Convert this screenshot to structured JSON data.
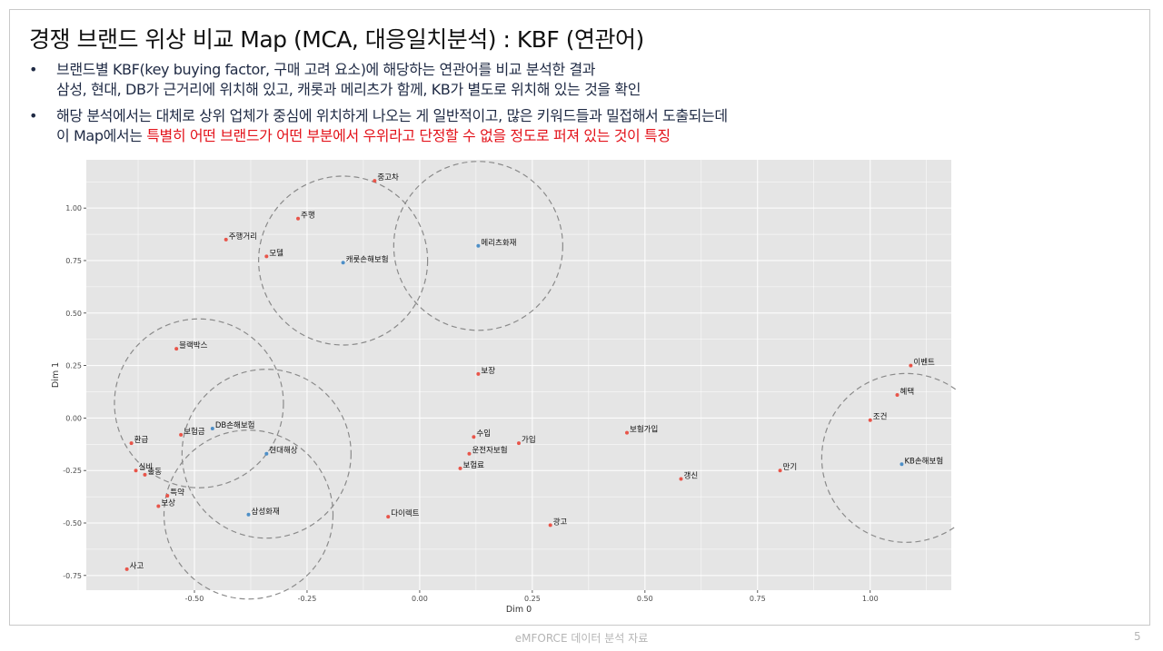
{
  "title": "경쟁 브랜드 위상 비교 Map (MCA, 대응일치분석) : KBF (연관어)",
  "bullets": [
    {
      "line1": "브랜드별 KBF(key buying factor, 구매 고려 요소)에 해당하는 연관어를 비교 분석한 결과",
      "line2": "삼성, 현대, DB가 근거리에 위치해 있고, 캐롯과 메리츠가 함께, KB가 별도로 위치해 있는 것을 확인"
    },
    {
      "line1": "해당 분석에서는 대체로 상위 업체가 중심에 위치하게 나오는 게 일반적이고, 많은 키워드들과 밀접해서 도출되는데",
      "line2_prefix": "이 Map에서는 ",
      "line2_highlight": "특별히 어떤 브랜드가 어떤 부분에서 우위라고 단정할 수 없을 정도로 퍼져 있는 것이 특징"
    }
  ],
  "bullet_marker": "•",
  "footer": "eMFORCE 데이터 분석 자료",
  "page_number": "5",
  "colors": {
    "keyword_point": "#e8554a",
    "brand_point": "#4e8fc7",
    "panel_bg": "#e5e5e5",
    "gridline": "#ffffff",
    "circle": "#8a8a8a",
    "highlight_text": "#e3131b"
  },
  "chart_data": {
    "type": "scatter",
    "xlabel": "Dim 0",
    "ylabel": "Dim 1",
    "xlim": [
      -0.74,
      1.18
    ],
    "ylim": [
      -0.82,
      1.23
    ],
    "xticks": [
      -0.5,
      -0.25,
      0.0,
      0.25,
      0.5,
      0.75,
      1.0
    ],
    "xtick_labels": [
      "-0.50",
      "-0.25",
      "0.00",
      "0.25",
      "0.50",
      "0.75",
      "1.00"
    ],
    "yticks": [
      -0.75,
      -0.5,
      -0.25,
      0.0,
      0.25,
      0.5,
      0.75,
      1.0
    ],
    "ytick_labels": [
      "-0.75",
      "-0.50",
      "-0.25",
      "0.00",
      "0.25",
      "0.50",
      "0.75",
      "1.00"
    ],
    "grid": true,
    "points": [
      {
        "label": "중고차",
        "x": -0.1,
        "y": 1.13,
        "kind": "keyword"
      },
      {
        "label": "주행",
        "x": -0.27,
        "y": 0.95,
        "kind": "keyword"
      },
      {
        "label": "주행거리",
        "x": -0.43,
        "y": 0.85,
        "kind": "keyword"
      },
      {
        "label": "모델",
        "x": -0.34,
        "y": 0.77,
        "kind": "keyword"
      },
      {
        "label": "캐롯손해보험",
        "x": -0.17,
        "y": 0.74,
        "kind": "brand"
      },
      {
        "label": "메리츠화재",
        "x": 0.13,
        "y": 0.82,
        "kind": "brand"
      },
      {
        "label": "블랙박스",
        "x": -0.54,
        "y": 0.33,
        "kind": "keyword"
      },
      {
        "label": "보장",
        "x": 0.13,
        "y": 0.21,
        "kind": "keyword"
      },
      {
        "label": "이벤트",
        "x": 1.09,
        "y": 0.25,
        "kind": "keyword"
      },
      {
        "label": "혜택",
        "x": 1.06,
        "y": 0.11,
        "kind": "keyword"
      },
      {
        "label": "조건",
        "x": 1.0,
        "y": -0.01,
        "kind": "keyword"
      },
      {
        "label": "DB손해보험",
        "x": -0.46,
        "y": -0.05,
        "kind": "brand"
      },
      {
        "label": "보험금",
        "x": -0.53,
        "y": -0.08,
        "kind": "keyword"
      },
      {
        "label": "환급",
        "x": -0.64,
        "y": -0.12,
        "kind": "keyword"
      },
      {
        "label": "현대해상",
        "x": -0.34,
        "y": -0.17,
        "kind": "brand"
      },
      {
        "label": "수입",
        "x": 0.12,
        "y": -0.09,
        "kind": "keyword"
      },
      {
        "label": "가입",
        "x": 0.22,
        "y": -0.12,
        "kind": "keyword"
      },
      {
        "label": "보험가입",
        "x": 0.46,
        "y": -0.07,
        "kind": "keyword"
      },
      {
        "label": "운전자보험",
        "x": 0.11,
        "y": -0.17,
        "kind": "keyword"
      },
      {
        "label": "보험료",
        "x": 0.09,
        "y": -0.24,
        "kind": "keyword"
      },
      {
        "label": "KB손해보험",
        "x": 1.07,
        "y": -0.22,
        "kind": "brand"
      },
      {
        "label": "만기",
        "x": 0.8,
        "y": -0.25,
        "kind": "keyword"
      },
      {
        "label": "갱신",
        "x": 0.58,
        "y": -0.29,
        "kind": "keyword"
      },
      {
        "label": "실비",
        "x": -0.63,
        "y": -0.25,
        "kind": "keyword"
      },
      {
        "label": "출동",
        "x": -0.61,
        "y": -0.27,
        "kind": "keyword"
      },
      {
        "label": "특약",
        "x": -0.56,
        "y": -0.37,
        "kind": "keyword"
      },
      {
        "label": "보상",
        "x": -0.58,
        "y": -0.42,
        "kind": "keyword"
      },
      {
        "label": "삼성화재",
        "x": -0.38,
        "y": -0.46,
        "kind": "brand"
      },
      {
        "label": "다이렉트",
        "x": -0.07,
        "y": -0.47,
        "kind": "keyword"
      },
      {
        "label": "광고",
        "x": 0.29,
        "y": -0.51,
        "kind": "keyword"
      },
      {
        "label": "사고",
        "x": -0.65,
        "y": -0.72,
        "kind": "keyword"
      }
    ],
    "cluster_circles": [
      {
        "cx": -0.17,
        "cy": 0.75
      },
      {
        "cx": 0.13,
        "cy": 0.82
      },
      {
        "cx": -0.49,
        "cy": 0.07
      },
      {
        "cx": -0.34,
        "cy": -0.17
      },
      {
        "cx": -0.38,
        "cy": -0.46
      },
      {
        "cx": 1.08,
        "cy": -0.19
      }
    ]
  }
}
